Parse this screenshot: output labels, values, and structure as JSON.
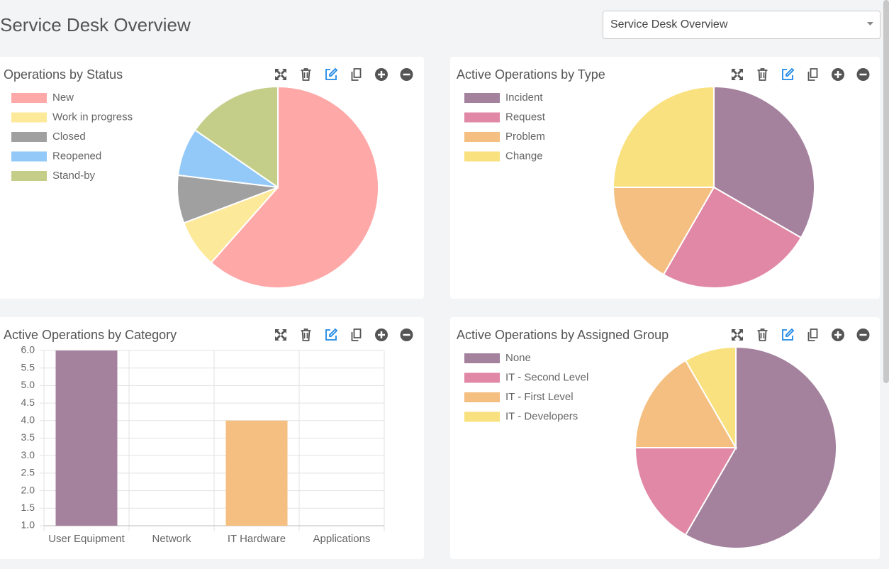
{
  "header": {
    "title": "Service Desk Overview",
    "selector": "Service Desk Overview"
  },
  "chart_data": [
    {
      "type": "pie",
      "title": "Operations by Status",
      "categories": [
        "New",
        "Work in progress",
        "Closed",
        "Reopened",
        "Stand-by"
      ],
      "values": [
        8,
        1,
        1,
        1,
        2
      ],
      "colors": [
        "#ffa8a8",
        "#fde99a",
        "#a0a0a0",
        "#93c9f8",
        "#c5ce89"
      ]
    },
    {
      "type": "pie",
      "title": "Active Operations by Type",
      "categories": [
        "Incident",
        "Request",
        "Problem",
        "Change"
      ],
      "values": [
        4,
        3,
        2,
        3
      ],
      "colors": [
        "#a4829e",
        "#e088a6",
        "#f4bf80",
        "#fae17f"
      ]
    },
    {
      "type": "bar",
      "title": "Active Operations by Category",
      "categories": [
        "User Equipment",
        "Network",
        "IT Hardware",
        "Applications"
      ],
      "values": [
        6,
        1,
        4,
        1
      ],
      "colors": [
        "#a4829e",
        "#e088a6",
        "#f4bf80",
        "#fae17f"
      ],
      "ylim": [
        1,
        6
      ],
      "yticks": [
        {
          "value": 1,
          "label": "1.0"
        },
        1.5,
        {
          "value": 2,
          "label": "2.0"
        },
        2.5,
        {
          "value": 3,
          "label": "3.0"
        },
        3.5,
        {
          "value": 4,
          "label": "4.0"
        },
        4.5,
        {
          "value": 5,
          "label": "5.0"
        },
        5.5,
        {
          "value": 6,
          "label": "6.0"
        }
      ],
      "grid": true
    },
    {
      "type": "pie",
      "title": "Active Operations by Assigned Group",
      "categories": [
        "None",
        "IT - Second Level",
        "IT - First Level",
        "IT - Developers"
      ],
      "values": [
        7,
        2,
        2,
        1
      ],
      "colors": [
        "#a4829e",
        "#e088a6",
        "#f4bf80",
        "#fae17f"
      ]
    }
  ]
}
